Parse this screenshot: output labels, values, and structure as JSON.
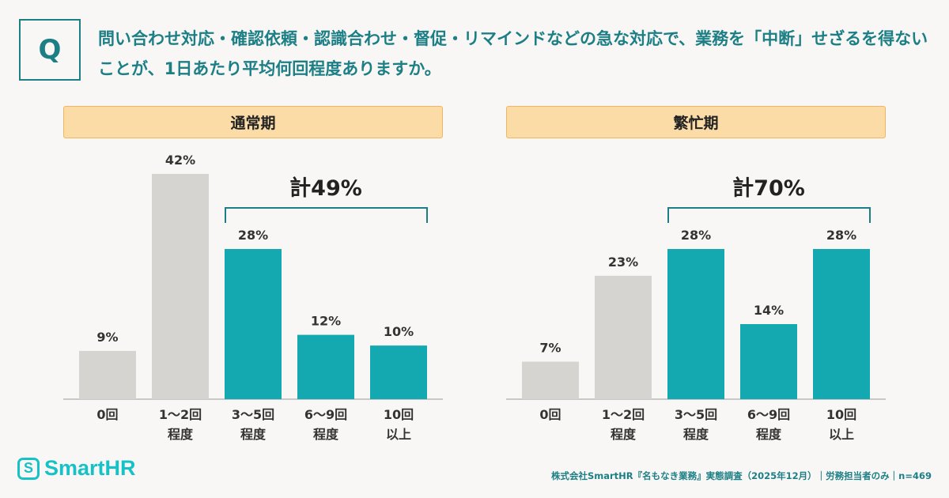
{
  "question": {
    "label": "Q",
    "text": "問い合わせ対応・確認依頼・認識合わせ・督促・リマインドなどの急な対応で、業務を「中断」せざるを得ないことが、1日あたり平均何回程度ありますか。"
  },
  "chart_data": [
    {
      "type": "bar",
      "title": "通常期",
      "unit": "%",
      "categories": [
        [
          "0回"
        ],
        [
          "1〜2回",
          "程度"
        ],
        [
          "3〜5回",
          "程度"
        ],
        [
          "6〜9回",
          "程度"
        ],
        [
          "10回",
          "以上"
        ]
      ],
      "values": [
        9,
        42,
        28,
        12,
        10
      ],
      "highlight": [
        false,
        false,
        true,
        true,
        true
      ],
      "total_label": "計49%",
      "total_num": "計49",
      "total_pct": "%"
    },
    {
      "type": "bar",
      "title": "繁忙期",
      "unit": "%",
      "categories": [
        [
          "0回"
        ],
        [
          "1〜2回",
          "程度"
        ],
        [
          "3〜5回",
          "程度"
        ],
        [
          "6〜9回",
          "程度"
        ],
        [
          "10回",
          "以上"
        ]
      ],
      "values": [
        7,
        23,
        28,
        14,
        28
      ],
      "highlight": [
        false,
        false,
        true,
        true,
        true
      ],
      "total_label": "計70%",
      "total_num": "計70",
      "total_pct": "%"
    }
  ],
  "colors": {
    "gray": "#d5d4d0",
    "teal": "#14a9b1"
  },
  "logo": "SmartHR",
  "source": "株式会社SmartHR『名もなき業務』実態調査（2025年12月）｜労務担当者のみ｜n=469"
}
